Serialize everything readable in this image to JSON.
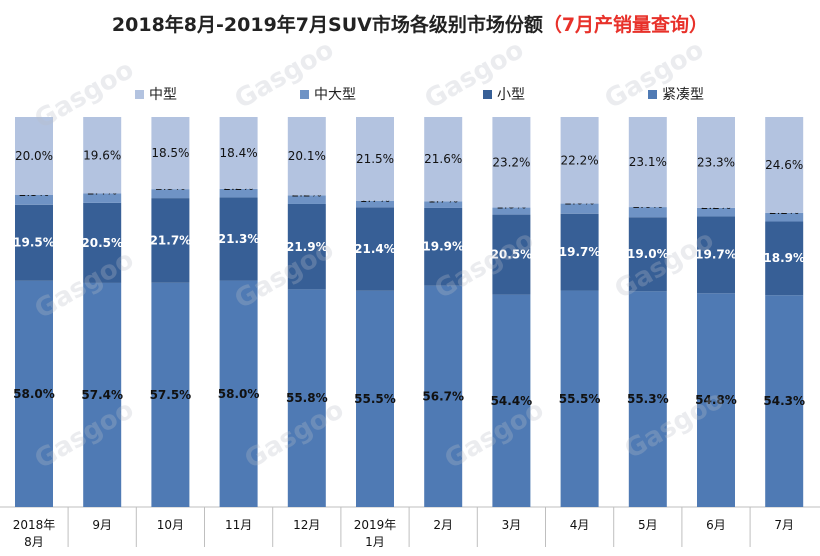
{
  "chart_data": {
    "type": "bar",
    "stacked": true,
    "percent": true,
    "title": "2018年8月-2019年7月SUV市场各级别市场份额",
    "title_highlight": "（7月产销量查询）",
    "categories": [
      "2018年8月",
      "9月",
      "10月",
      "11月",
      "12月",
      "2019年1月",
      "2月",
      "3月",
      "4月",
      "5月",
      "6月",
      "7月"
    ],
    "series": [
      {
        "name": "紧凑型",
        "color": "#4f7ab4",
        "values": [
          58.0,
          57.4,
          57.5,
          58.0,
          55.8,
          55.5,
          56.7,
          54.4,
          55.5,
          55.3,
          54.8,
          54.3
        ]
      },
      {
        "name": "小型",
        "color": "#375f96",
        "values": [
          19.5,
          20.5,
          21.7,
          21.3,
          21.9,
          21.4,
          19.9,
          20.5,
          19.7,
          19.0,
          19.7,
          18.9
        ]
      },
      {
        "name": "中大型",
        "color": "#6f93c5",
        "values": [
          2.5,
          2.4,
          2.3,
          2.2,
          2.2,
          1.7,
          1.7,
          1.8,
          2.6,
          2.6,
          2.2,
          2.2
        ]
      },
      {
        "name": "中型",
        "color": "#b3c3e0",
        "values": [
          20.0,
          19.6,
          18.5,
          18.4,
          20.1,
          21.5,
          21.6,
          23.2,
          22.2,
          23.1,
          23.3,
          24.6
        ]
      }
    ],
    "legend_order": [
      "中型",
      "中大型",
      "小型",
      "紧凑型"
    ],
    "legend_position": "top",
    "ylim": [
      0,
      100
    ],
    "grid": false,
    "watermark": "Gasgoo 盖世汽车 auto.gasgoo.com"
  }
}
